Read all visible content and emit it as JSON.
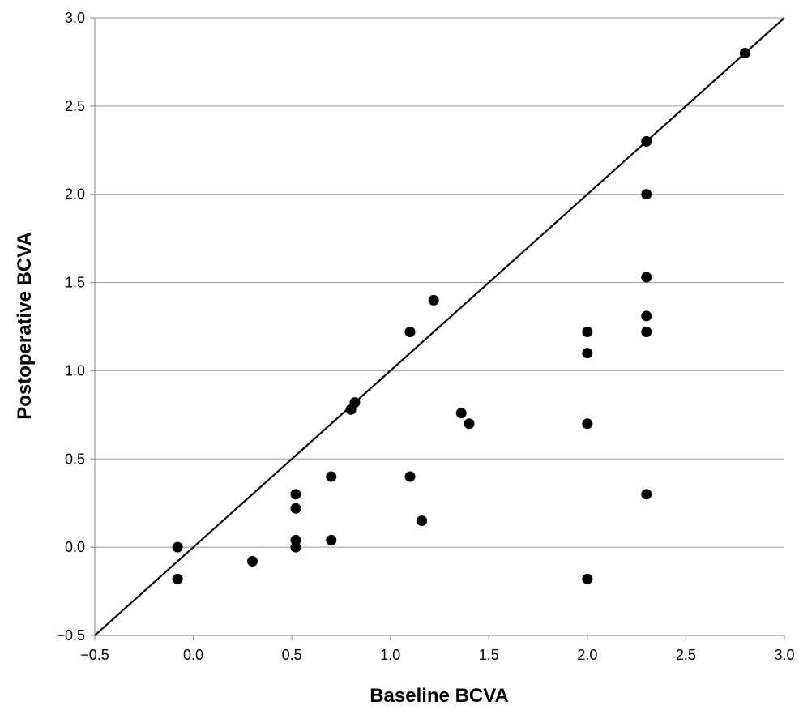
{
  "chart_data": {
    "type": "scatter",
    "title": "",
    "xlabel": "Baseline BCVA",
    "ylabel": "Postoperative BCVA",
    "xlim": [
      -0.5,
      3.0
    ],
    "ylim": [
      -0.5,
      3.0
    ],
    "xticks": [
      "-0.5",
      "0.0",
      "0.5",
      "1.0",
      "1.5",
      "2.0",
      "2.5",
      "3.0"
    ],
    "yticks": [
      "-0.5",
      "0.0",
      "0.5",
      "1.0",
      "1.5",
      "2.0",
      "2.5",
      "3.0"
    ],
    "grid": "horizontal",
    "reference_line": "y = x",
    "point_color": "#000000",
    "points": [
      {
        "x": -0.08,
        "y": 0.0
      },
      {
        "x": -0.08,
        "y": -0.18
      },
      {
        "x": 0.3,
        "y": -0.08
      },
      {
        "x": 0.52,
        "y": 0.3
      },
      {
        "x": 0.52,
        "y": 0.22
      },
      {
        "x": 0.52,
        "y": 0.04
      },
      {
        "x": 0.52,
        "y": 0.0
      },
      {
        "x": 0.7,
        "y": 0.4
      },
      {
        "x": 0.7,
        "y": 0.04
      },
      {
        "x": 0.8,
        "y": 0.78
      },
      {
        "x": 0.82,
        "y": 0.82
      },
      {
        "x": 1.1,
        "y": 1.22
      },
      {
        "x": 1.1,
        "y": 0.4
      },
      {
        "x": 1.16,
        "y": 0.15
      },
      {
        "x": 1.22,
        "y": 1.4
      },
      {
        "x": 1.36,
        "y": 0.76
      },
      {
        "x": 1.4,
        "y": 0.7
      },
      {
        "x": 2.0,
        "y": 1.22
      },
      {
        "x": 2.0,
        "y": 1.1
      },
      {
        "x": 2.0,
        "y": 0.7
      },
      {
        "x": 2.0,
        "y": -0.18
      },
      {
        "x": 2.3,
        "y": 2.3
      },
      {
        "x": 2.3,
        "y": 2.0
      },
      {
        "x": 2.3,
        "y": 1.53
      },
      {
        "x": 2.3,
        "y": 1.31
      },
      {
        "x": 2.3,
        "y": 1.22
      },
      {
        "x": 2.3,
        "y": 0.3
      },
      {
        "x": 2.8,
        "y": 2.8
      }
    ]
  }
}
